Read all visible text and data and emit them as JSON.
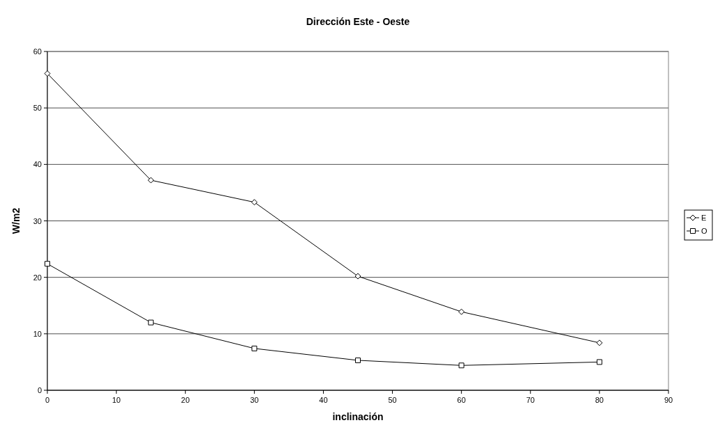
{
  "chart_data": {
    "type": "line",
    "title": "Dirección Este - Oeste",
    "xlabel": "inclinación",
    "ylabel": "W/m2",
    "x": [
      0,
      15,
      30,
      45,
      60,
      80
    ],
    "series": [
      {
        "name": "E",
        "color": "#000000",
        "marker": "diamond",
        "values": [
          56.1,
          37.2,
          33.3,
          20.2,
          13.9,
          8.4
        ]
      },
      {
        "name": "O",
        "color": "#000000",
        "marker": "square",
        "values": [
          22.4,
          12.0,
          7.4,
          5.3,
          4.4,
          5.0
        ]
      }
    ],
    "xlim": [
      0,
      90
    ],
    "xticks": [
      0,
      10,
      20,
      30,
      40,
      50,
      60,
      70,
      80,
      90
    ],
    "ylim": [
      0,
      60
    ],
    "yticks": [
      0,
      10,
      20,
      30,
      40,
      50,
      60
    ],
    "grid": "y",
    "legend": "right",
    "line_style": "solid"
  }
}
